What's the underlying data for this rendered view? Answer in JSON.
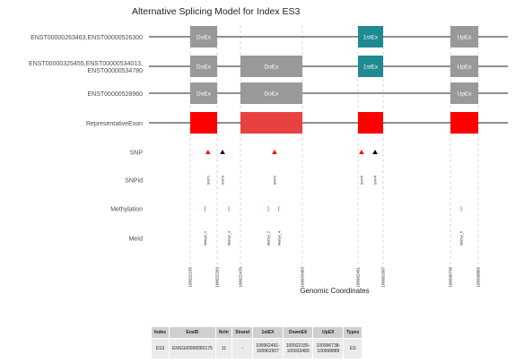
{
  "chart_data": {
    "type": "exon-model",
    "title": "Alternative Splicing Model for Index ES3",
    "xlabel": "Genomic Coordinates",
    "x_ticks": [
      "100922155",
      "100922269",
      "100922470",
      "100933483",
      "100962491",
      "100962607",
      "100996738",
      "100998889"
    ],
    "colors": {
      "gray": "#999999",
      "teal": "#1f8a92",
      "red": "#ff0000",
      "redlight": "#e84141",
      "snp_red": "#ff0000",
      "snp_black": "#000000",
      "methyl": "#e8736b"
    },
    "tracks": [
      {
        "label": "ENST00000263463,ENST00000526300",
        "exons": [
          {
            "text": "DoEx",
            "start": "100922155",
            "end": "100922269",
            "color": "gray"
          },
          {
            "text": "1stEx",
            "start": "100962491",
            "end": "100962607",
            "color": "teal"
          },
          {
            "text": "UpEx",
            "start": "100996738",
            "end": "100998889",
            "color": "gray"
          }
        ]
      },
      {
        "label": "ENST00000325455,ENST00000534013,\nENST00000534780",
        "exons": [
          {
            "text": "DoEx",
            "start": "100922155",
            "end": "100922269",
            "color": "gray"
          },
          {
            "text": "DoEx",
            "start": "100922470",
            "end": "100933483",
            "color": "gray"
          },
          {
            "text": "1stEx",
            "start": "100962491",
            "end": "100962607",
            "color": "teal"
          },
          {
            "text": "UpEx",
            "start": "100996738",
            "end": "100998889",
            "color": "gray"
          }
        ]
      },
      {
        "label": "ENST00000528960",
        "exons": [
          {
            "text": "DoEx",
            "start": "100922155",
            "end": "100922269",
            "color": "gray"
          },
          {
            "text": "DoEx",
            "start": "100922470",
            "end": "100933483",
            "color": "gray"
          },
          {
            "text": "UpEx",
            "start": "100996738",
            "end": "100998889",
            "color": "gray"
          }
        ]
      },
      {
        "label": "RepresentativeExon",
        "exons": [
          {
            "text": "",
            "start": "100922155",
            "end": "100922269",
            "color": "red"
          },
          {
            "text": "",
            "start": "100922470",
            "end": "100933483",
            "color": "redlight"
          },
          {
            "text": "",
            "start": "100962491",
            "end": "100962607",
            "color": "red"
          },
          {
            "text": "",
            "start": "100996738",
            "end": "100998889",
            "color": "red"
          }
        ]
      }
    ],
    "snp_label": "SNP",
    "snps": [
      {
        "at": 0.66,
        "color": "snp_red"
      },
      {
        "at": 1.23,
        "color": "snp_black"
      },
      {
        "at": 2.55,
        "color": "snp_red"
      },
      {
        "at": 4.14,
        "color": "snp_red"
      },
      {
        "at": 4.68,
        "color": "snp_black"
      }
    ],
    "snpid_label": "SNPid",
    "snpids": [
      {
        "text": "SNP1",
        "at": 0.66
      },
      {
        "text": "SNP3",
        "at": 1.23
      },
      {
        "text": "SNP2",
        "at": 2.55
      },
      {
        "text": "SNP5",
        "at": 4.14
      },
      {
        "text": "SNP4",
        "at": 4.68
      }
    ],
    "methylation_label": "Methylation",
    "methylation": [
      0.55,
      1.5,
      2.45,
      2.62,
      6.39
    ],
    "meid_label": "MeId",
    "meids": [
      {
        "text": "Methyl_1",
        "at": 0.55
      },
      {
        "text": "Methyl_3",
        "at": 1.5
      },
      {
        "text": "Methyl_2",
        "at": 2.45
      },
      {
        "text": "Methyl_4",
        "at": 2.62
      },
      {
        "text": "Methyl_5",
        "at": 6.39
      }
    ]
  },
  "table": {
    "headers": [
      "Index",
      "EnsID",
      "Nchr",
      "Strand",
      "1stEX",
      "DownEX",
      "UpEX",
      "Types"
    ],
    "rows": [
      [
        "ES3",
        "ENSG00000082175",
        "11",
        "-",
        "100962491-\n100962607",
        "100922155-\n100933483",
        "100996738-\n100998889",
        "ES"
      ]
    ]
  }
}
